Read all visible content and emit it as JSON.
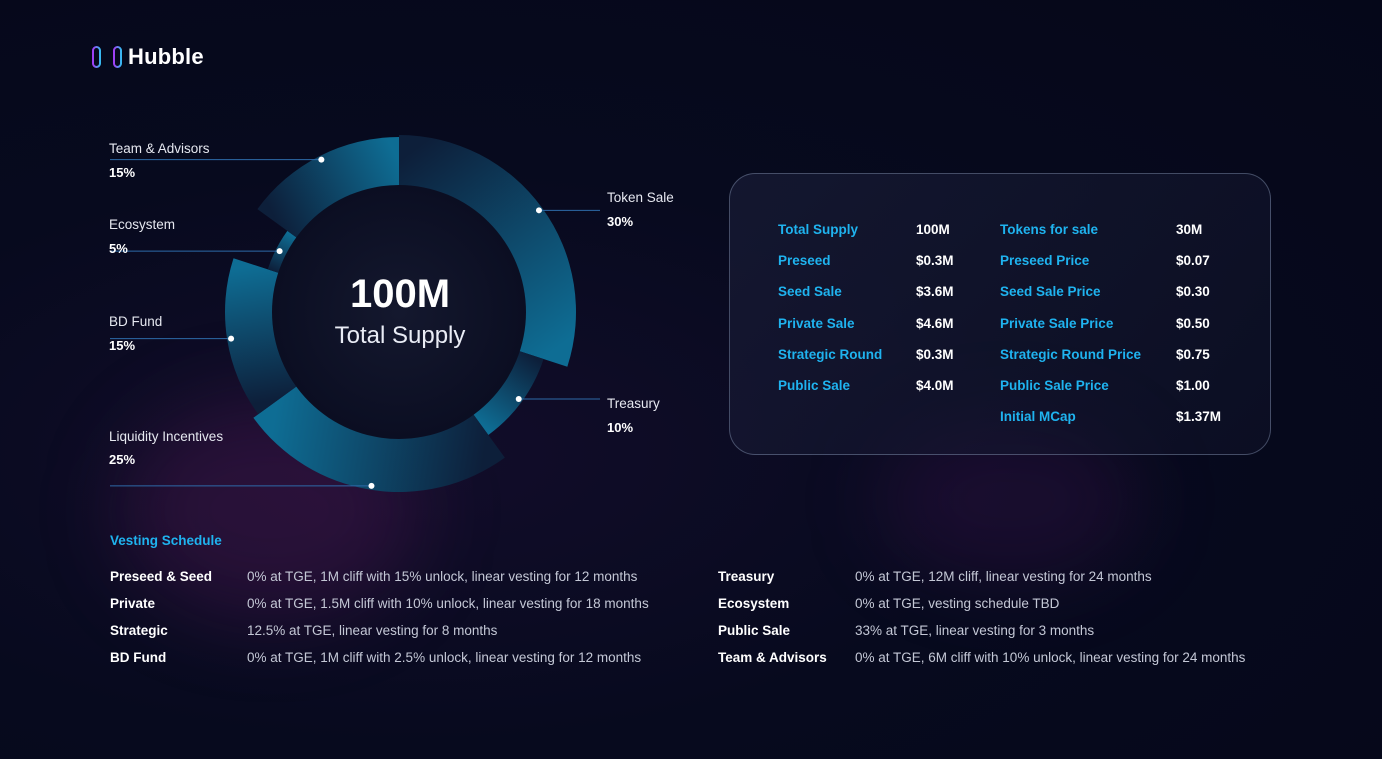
{
  "brand": {
    "name": "Hubble"
  },
  "colors": {
    "accent": "#1fb3ef",
    "background": "#070a1e",
    "ring_dark": "#0d1f3a",
    "ring_light": "#0e6d94"
  },
  "chart_data": {
    "type": "pie",
    "donut": true,
    "center_value": "100M",
    "center_label": "Total Supply",
    "slices": [
      {
        "label": "Token Sale",
        "pct_text": "30%",
        "value": 30
      },
      {
        "label": "Treasury",
        "pct_text": "10%",
        "value": 10
      },
      {
        "label": "Liquidity Incentives",
        "pct_text": "25%",
        "value": 25
      },
      {
        "label": "BD Fund",
        "pct_text": "15%",
        "value": 15
      },
      {
        "label": "Ecosystem",
        "pct_text": "5%",
        "value": 5
      },
      {
        "label": "Team & Advisors",
        "pct_text": "15%",
        "value": 15
      }
    ]
  },
  "summary": {
    "left": [
      {
        "key": "Total Supply",
        "value": "100M"
      },
      {
        "key": "Preseed",
        "value": "$0.3M"
      },
      {
        "key": "Seed Sale",
        "value": "$3.6M"
      },
      {
        "key": "Private Sale",
        "value": "$4.6M"
      },
      {
        "key": "Strategic Round",
        "value": "$0.3M"
      },
      {
        "key": "Public Sale",
        "value": "$4.0M"
      }
    ],
    "right": [
      {
        "key": "Tokens for sale",
        "value": "30M"
      },
      {
        "key": "Preseed Price",
        "value": "$0.07"
      },
      {
        "key": "Seed Sale Price",
        "value": "$0.30"
      },
      {
        "key": "Private Sale Price",
        "value": "$0.50"
      },
      {
        "key": "Strategic Round Price",
        "value": "$0.75"
      },
      {
        "key": "Public Sale Price",
        "value": "$1.00"
      },
      {
        "key": "Initial MCap",
        "value": "$1.37M"
      }
    ]
  },
  "vesting": {
    "title": "Vesting Schedule",
    "left": [
      {
        "name": "Preseed & Seed",
        "desc": "0% at TGE, 1M cliff with 15% unlock, linear vesting for 12 months"
      },
      {
        "name": "Private",
        "desc": "0% at TGE, 1.5M cliff with 10% unlock, linear vesting for 18 months"
      },
      {
        "name": "Strategic",
        "desc": "12.5% at TGE, linear vesting for 8 months"
      },
      {
        "name": "BD Fund",
        "desc": "0% at TGE, 1M cliff with 2.5% unlock, linear vesting for 12 months"
      }
    ],
    "right": [
      {
        "name": "Treasury",
        "desc": "0% at TGE, 12M cliff, linear vesting for 24 months"
      },
      {
        "name": "Ecosystem",
        "desc": "0% at TGE, vesting schedule TBD"
      },
      {
        "name": "Public Sale",
        "desc": "33% at TGE, linear vesting for 3 months"
      },
      {
        "name": "Team & Advisors",
        "desc": "0% at TGE, 6M cliff with 10% unlock, linear vesting for 24 months"
      }
    ]
  }
}
